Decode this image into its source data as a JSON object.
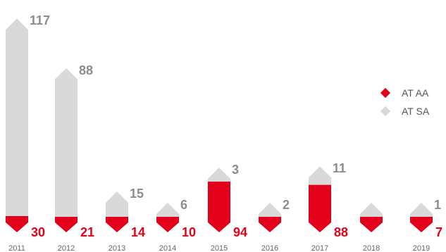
{
  "chart_data": {
    "type": "bar",
    "stacked": true,
    "categories": [
      "2011",
      "2012",
      "2013",
      "2014",
      "2015",
      "2016",
      "2017",
      "2018",
      "2019"
    ],
    "series": [
      {
        "name": "AT AA",
        "color": "#e3001b",
        "values": [
          30,
          21,
          14,
          10,
          94,
          null,
          88,
          null,
          7
        ],
        "labels": [
          "30",
          "21",
          "14",
          "10",
          "94",
          "",
          "88",
          "",
          "7"
        ]
      },
      {
        "name": "AT SA",
        "color": "#d9d9d9",
        "values": [
          117,
          88,
          15,
          6,
          3,
          2,
          11,
          null,
          1
        ],
        "labels": [
          "117",
          "88",
          "15",
          "6",
          "3",
          "2",
          "11",
          "",
          "1"
        ]
      }
    ],
    "legend": {
      "position": "right",
      "items": [
        "AT AA",
        "AT SA"
      ]
    }
  }
}
